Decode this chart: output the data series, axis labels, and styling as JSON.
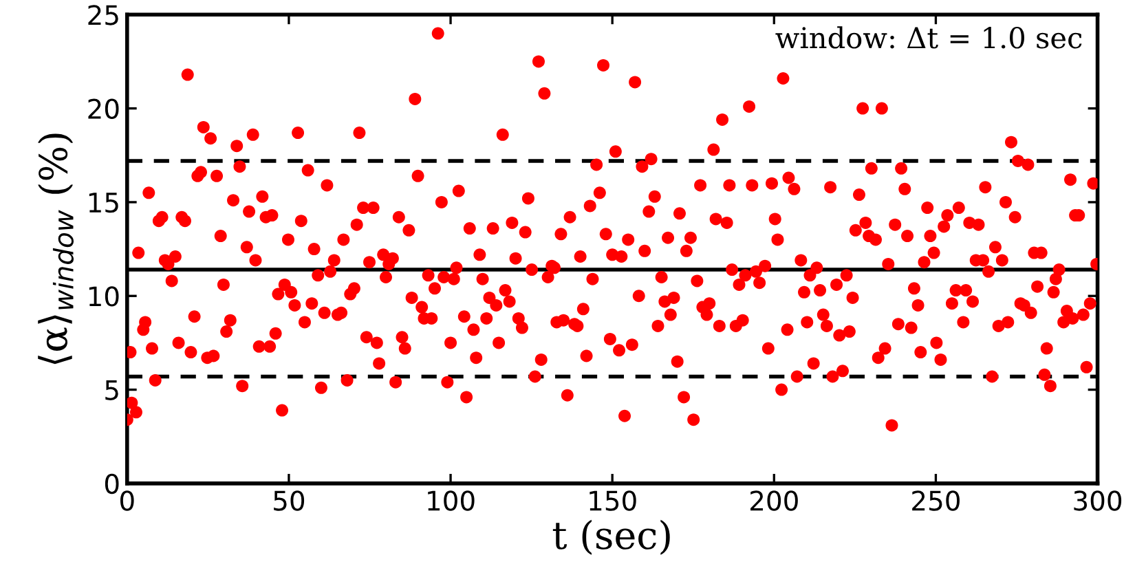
{
  "chart_data": {
    "type": "scatter",
    "xlabel": "t (sec)",
    "ylabel": "⟨α⟩$_{window}$ (%)",
    "annotations": [
      "window: Δt = 1.0 sec"
    ],
    "xlim": [
      0,
      300
    ],
    "ylim": [
      0,
      25
    ],
    "xticks": [
      0,
      50,
      100,
      150,
      200,
      250,
      300
    ],
    "yticks": [
      0,
      5,
      10,
      15,
      20,
      25
    ],
    "grid": false,
    "marker": "circle",
    "ref_lines": [
      {
        "axis": "y",
        "value": 11.4,
        "color": "#000000",
        "line_style": "solid"
      },
      {
        "axis": "y",
        "value": 17.2,
        "color": "#000000",
        "line_style": "dashed"
      },
      {
        "axis": "y",
        "value": 5.7,
        "color": "#000000",
        "line_style": "dashed"
      }
    ],
    "series": [
      {
        "color": "#ff0000",
        "x": [
          0,
          1.4,
          2.8,
          1,
          3.5,
          5,
          5.6,
          6.7,
          7.7,
          8.7,
          9.8,
          10.8,
          11.7,
          12.7,
          14.9,
          13.8,
          15.9,
          16.9,
          17.9,
          18.7,
          19.7,
          20.8,
          21.8,
          22.8,
          23.6,
          24.8,
          26.7,
          25.8,
          27.7,
          28.9,
          29.8,
          30.7,
          31.9,
          32.8,
          33.9,
          34.8,
          35.6,
          37,
          37.7,
          38.9,
          39.7,
          40.8,
          44.1,
          41.8,
          42.9,
          44.8,
          45.9,
          46.7,
          47.9,
          48.7,
          50.7,
          49.8,
          51.8,
          52.8,
          53.8,
          54.9,
          55.9,
          57.1,
          57.8,
          59,
          60,
          61,
          61.8,
          62.8,
          64,
          65.1,
          66.2,
          66.9,
          68,
          69,
          70.2,
          71,
          71.8,
          73,
          76.1,
          74,
          74.9,
          77.2,
          77.9,
          79.2,
          80,
          80.9,
          82.1,
          83,
          84,
          85,
          85.9,
          87.1,
          88,
          89,
          89.9,
          91.1,
          91.8,
          94.1,
          93.1,
          95.1,
          96.1,
          97.2,
          97.9,
          101,
          99,
          100,
          101.8,
          102.5,
          104.2,
          104.9,
          105.9,
          107.1,
          107.9,
          109,
          109.9,
          111.1,
          112,
          114.1,
          113.1,
          114.9,
          116.1,
          116.9,
          118.2,
          119,
          120.1,
          121,
          122.1,
          123.1,
          124,
          125.1,
          126.1,
          127.2,
          128,
          129,
          130.1,
          131.3,
          132.1,
          132.8,
          134.9,
          134.1,
          136.1,
          136.9,
          138.3,
          139.2,
          140.1,
          141,
          142,
          143.1,
          143.9,
          145.1,
          146.1,
          147.2,
          148,
          149.3,
          150,
          151,
          152.1,
          152.8,
          153.8,
          154.9,
          156.1,
          157,
          158.2,
          159.2,
          160,
          161.3,
          163.1,
          162,
          164.1,
          165.2,
          166.2,
          168,
          167.2,
          169,
          170.1,
          170.8,
          172.1,
          172.9,
          174.2,
          175.1,
          176.2,
          177.2,
          177.9,
          179.2,
          180,
          181.3,
          182,
          185.4,
          183.1,
          184,
          188.2,
          190.3,
          186.2,
          187,
          189.2,
          191.1,
          192.3,
          193.2,
          194.4,
          195.5,
          197.2,
          198.2,
          199.3,
          200.3,
          201.1,
          202.3,
          202.8,
          204.1,
          204.5,
          206.2,
          207.1,
          208.3,
          209.3,
          210.2,
          211.1,
          212.2,
          213.2,
          214.2,
          215.2,
          216.3,
          217.4,
          218.1,
          221.2,
          219.3,
          220.2,
          223.3,
          222.4,
          224.3,
          225.2,
          228.3,
          226.3,
          227.4,
          233.3,
          229.3,
          231.4,
          230.1,
          232.2,
          234.3,
          235.3,
          236.4,
          237.4,
          238.4,
          239.3,
          240.4,
          241.2,
          242.4,
          243.3,
          244.5,
          245.3,
          246.4,
          247.4,
          248.3,
          249.4,
          250.2,
          251.5,
          252.5,
          253.6,
          255,
          256.2,
          257.1,
          258.5,
          259.3,
          260.4,
          263.2,
          261.4,
          262.4,
          264.6,
          265.3,
          266.3,
          267.4,
          268.4,
          269.4,
          272.3,
          270.5,
          271.6,
          273.3,
          274.5,
          275.4,
          278.5,
          276.2,
          277.3,
          279.4,
          280.4,
          282.6,
          281.4,
          283.6,
          284.3,
          285.4,
          286.4,
          287.1,
          288.1,
          289.5,
          292.3,
          290.5,
          291.6,
          293.1,
          294.2,
          295.6,
          296.6,
          297.7,
          298.7,
          299.7
        ],
        "values": [
          3.4,
          4.3,
          3.8,
          7,
          12.3,
          8.2,
          8.6,
          15.5,
          7.2,
          5.5,
          14,
          14.2,
          11.9,
          11.7,
          12.1,
          10.8,
          7.5,
          14.2,
          14,
          21.8,
          7,
          8.9,
          16.4,
          16.6,
          19,
          6.7,
          6.8,
          18.4,
          16.4,
          13.2,
          10.6,
          8.1,
          8.7,
          15.1,
          18,
          16.9,
          5.2,
          12.6,
          14.5,
          18.6,
          11.9,
          7.3,
          7.3,
          15.3,
          14.2,
          14.3,
          8,
          10.1,
          3.9,
          10.6,
          10.2,
          13,
          9.5,
          18.7,
          14,
          8.6,
          16.7,
          9.6,
          12.5,
          11.1,
          5.1,
          9.1,
          15.9,
          11.3,
          11.9,
          9,
          9.1,
          13,
          5.5,
          10.1,
          10.4,
          13.8,
          18.7,
          14.7,
          14.7,
          7.8,
          11.8,
          7.5,
          6.4,
          12.2,
          11,
          11.7,
          12,
          5.4,
          14.2,
          7.8,
          7.2,
          13.5,
          9.9,
          20.5,
          16.4,
          9.4,
          8.8,
          8.8,
          11.1,
          10.4,
          24,
          15,
          11,
          10.9,
          5.4,
          7.5,
          11.5,
          15.6,
          8.9,
          4.6,
          13.6,
          8.2,
          6.7,
          12.2,
          10.9,
          8.8,
          9.9,
          9.5,
          13.6,
          7.5,
          18.6,
          10.3,
          9.7,
          13.9,
          12,
          8.8,
          8.3,
          13.4,
          15.2,
          11.4,
          5.7,
          22.5,
          6.6,
          20.8,
          11,
          11.6,
          11.5,
          8.6,
          8.7,
          13.3,
          4.7,
          14.2,
          8.5,
          8.4,
          12.1,
          9.3,
          6.8,
          14.8,
          10.9,
          17,
          15.5,
          22.3,
          13.3,
          7.7,
          12.2,
          17.7,
          7.1,
          12.1,
          3.6,
          13,
          7.4,
          21.4,
          10,
          16.9,
          12.4,
          14.5,
          15.3,
          17.3,
          8.4,
          11,
          9.7,
          9,
          13.1,
          9.9,
          6.5,
          14.4,
          4.6,
          12.4,
          13.1,
          3.4,
          10.8,
          15.9,
          9.4,
          9,
          9.6,
          17.8,
          14.1,
          13.9,
          8.4,
          19.4,
          8.4,
          8.7,
          15.9,
          11.4,
          10.6,
          11.1,
          20.1,
          15.9,
          11.3,
          10.7,
          11.6,
          7.2,
          16,
          14.1,
          13,
          5,
          21.6,
          8.2,
          16.3,
          15.7,
          5.7,
          11.9,
          10.2,
          8.6,
          11.1,
          6.4,
          11.5,
          10.3,
          9,
          8.4,
          15.8,
          5.7,
          6,
          10.6,
          7.9,
          8.1,
          11.1,
          9.9,
          13.5,
          13.9,
          15.4,
          20,
          20,
          13.2,
          13,
          16.8,
          6.7,
          7.2,
          11.7,
          3.1,
          13.8,
          8.5,
          16.8,
          15.7,
          13.2,
          8.3,
          10.4,
          9.5,
          7,
          11.8,
          14.7,
          13.2,
          12.3,
          7.5,
          6.6,
          13.7,
          14.3,
          9.6,
          10.3,
          14.7,
          8.6,
          10.3,
          13.9,
          13.8,
          9.7,
          11.9,
          11.9,
          15.8,
          11.3,
          5.7,
          12.6,
          8.4,
          8.6,
          11.9,
          15,
          18.2,
          14.2,
          17.2,
          17,
          9.6,
          9.5,
          9.1,
          12.3,
          12.3,
          10.5,
          5.8,
          7.2,
          5.2,
          10.2,
          10.9,
          11.4,
          8.6,
          8.8,
          9.2,
          16.2,
          14.3,
          14.3,
          9,
          6.2,
          9.6,
          16,
          11.7
        ]
      }
    ]
  }
}
